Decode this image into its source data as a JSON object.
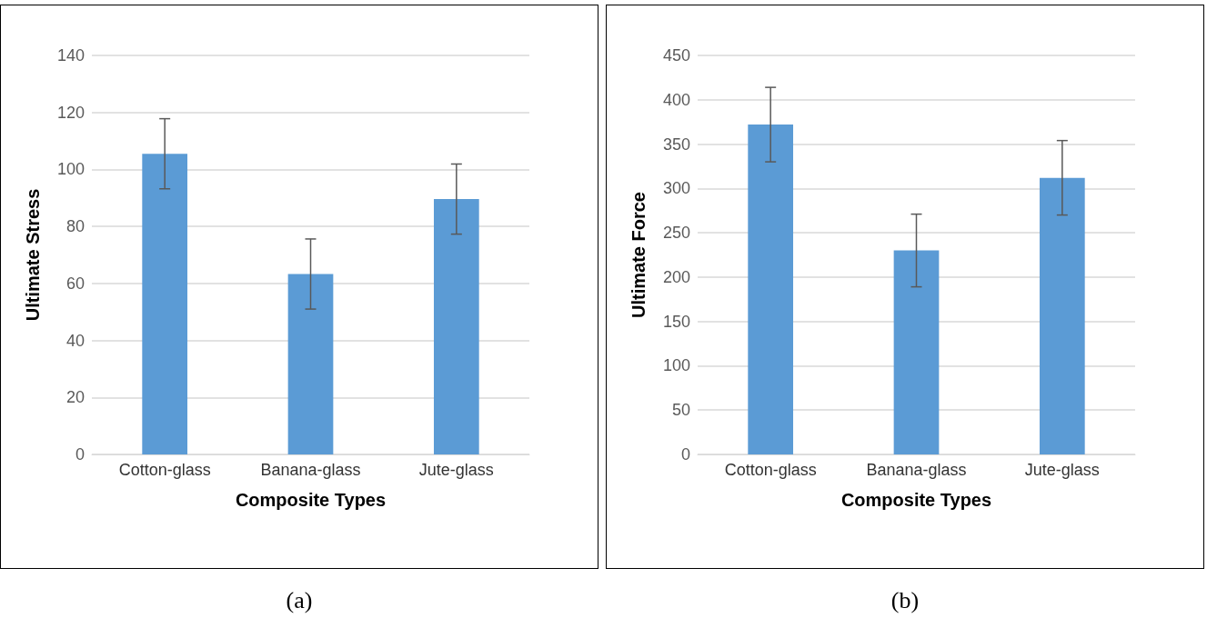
{
  "chart_data": [
    {
      "type": "bar",
      "categories": [
        "Cotton-glass",
        "Banana-glass",
        "Jute-glass"
      ],
      "values": [
        105.5,
        63.3,
        89.6
      ],
      "errors": [
        12.3,
        12.3,
        12.3
      ],
      "color": "#5b9bd5",
      "xlabel": "Composite Types",
      "ylabel": "Ultimate Stress",
      "ylim": [
        0,
        140
      ],
      "yticks": [
        0,
        20,
        40,
        60,
        80,
        100,
        120,
        140
      ],
      "grid": "y",
      "annotations": [
        "(a)"
      ]
    },
    {
      "type": "bar",
      "categories": [
        "Cotton-glass",
        "Banana-glass",
        "Jute-glass"
      ],
      "values": [
        372,
        230,
        312
      ],
      "errors": [
        42,
        41,
        42
      ],
      "color": "#5b9bd5",
      "xlabel": "Composite Types",
      "ylabel": "Ultimate Force",
      "ylim": [
        0,
        450
      ],
      "yticks": [
        0,
        50,
        100,
        150,
        200,
        250,
        300,
        350,
        400,
        450
      ],
      "grid": "y",
      "annotations": [
        "(b)"
      ]
    }
  ]
}
